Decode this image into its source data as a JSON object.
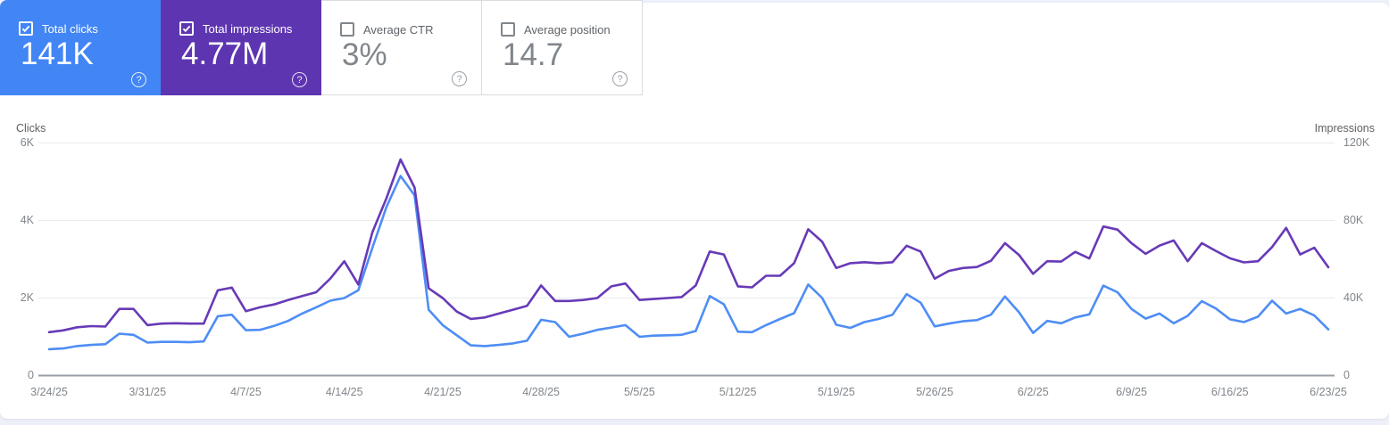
{
  "metric_cards": [
    {
      "label": "Total clicks",
      "value": "141K",
      "checked": true,
      "bg": "#4285f4"
    },
    {
      "label": "Total impressions",
      "value": "4.77M",
      "checked": true,
      "bg": "#5e35b1"
    },
    {
      "label": "Average CTR",
      "value": "3%",
      "checked": false,
      "bg": null
    },
    {
      "label": "Average position",
      "value": "14.7",
      "checked": false,
      "bg": null
    }
  ],
  "help_glyph": "?",
  "chart_data": {
    "type": "line",
    "title": "",
    "grid": true,
    "legend_position": "none",
    "x_tick_every": 7,
    "x": [
      "3/24/25",
      "3/25/25",
      "3/26/25",
      "3/27/25",
      "3/28/25",
      "3/29/25",
      "3/30/25",
      "3/31/25",
      "4/1/25",
      "4/2/25",
      "4/3/25",
      "4/4/25",
      "4/5/25",
      "4/6/25",
      "4/7/25",
      "4/8/25",
      "4/9/25",
      "4/10/25",
      "4/11/25",
      "4/12/25",
      "4/13/25",
      "4/14/25",
      "4/15/25",
      "4/16/25",
      "4/17/25",
      "4/18/25",
      "4/19/25",
      "4/20/25",
      "4/21/25",
      "4/22/25",
      "4/23/25",
      "4/24/25",
      "4/25/25",
      "4/26/25",
      "4/27/25",
      "4/28/25",
      "4/29/25",
      "4/30/25",
      "5/1/25",
      "5/2/25",
      "5/3/25",
      "5/4/25",
      "5/5/25",
      "5/6/25",
      "5/7/25",
      "5/8/25",
      "5/9/25",
      "5/10/25",
      "5/11/25",
      "5/12/25",
      "5/13/25",
      "5/14/25",
      "5/15/25",
      "5/16/25",
      "5/17/25",
      "5/18/25",
      "5/19/25",
      "5/20/25",
      "5/21/25",
      "5/22/25",
      "5/23/25",
      "5/24/25",
      "5/25/25",
      "5/26/25",
      "5/27/25",
      "5/28/25",
      "5/29/25",
      "5/30/25",
      "5/31/25",
      "6/1/25",
      "6/2/25",
      "6/3/25",
      "6/4/25",
      "6/5/25",
      "6/6/25",
      "6/7/25",
      "6/8/25",
      "6/9/25",
      "6/10/25",
      "6/11/25",
      "6/12/25",
      "6/13/25",
      "6/14/25",
      "6/15/25",
      "6/16/25",
      "6/17/25",
      "6/18/25",
      "6/19/25",
      "6/20/25",
      "6/21/25",
      "6/22/25",
      "6/23/25"
    ],
    "left_axis": {
      "title": "Clicks",
      "ticks": [
        "0",
        "2K",
        "4K",
        "6K"
      ],
      "tick_values": [
        0,
        2000,
        4000,
        6000
      ],
      "max": 6000
    },
    "right_axis": {
      "title": "Impressions",
      "ticks": [
        "0",
        "40K",
        "80K",
        "120K"
      ],
      "tick_values": [
        0,
        40000,
        80000,
        120000
      ],
      "max": 120000
    },
    "series": [
      {
        "name": "Total clicks",
        "axis": "left",
        "color": "#4e8df5",
        "values": [
          680,
          700,
          760,
          790,
          810,
          1080,
          1050,
          850,
          870,
          870,
          860,
          880,
          1530,
          1570,
          1170,
          1180,
          1280,
          1410,
          1600,
          1760,
          1930,
          2000,
          2200,
          3300,
          4350,
          5150,
          4650,
          1700,
          1300,
          1040,
          780,
          760,
          790,
          830,
          900,
          1440,
          1380,
          1000,
          1080,
          1180,
          1240,
          1300,
          1000,
          1030,
          1040,
          1050,
          1150,
          2050,
          1840,
          1130,
          1120,
          1300,
          1460,
          1610,
          2350,
          2000,
          1310,
          1230,
          1380,
          1460,
          1570,
          2100,
          1880,
          1270,
          1340,
          1400,
          1430,
          1570,
          2040,
          1630,
          1100,
          1410,
          1350,
          1500,
          1580,
          2320,
          2150,
          1720,
          1470,
          1600,
          1350,
          1540,
          1920,
          1730,
          1450,
          1380,
          1520,
          1930,
          1600,
          1720,
          1550,
          1190
        ]
      },
      {
        "name": "Total impressions",
        "axis": "right",
        "color": "#673ab7",
        "values": [
          22400,
          23300,
          24900,
          25500,
          25300,
          34400,
          34400,
          26000,
          26800,
          27000,
          26800,
          26800,
          44000,
          45400,
          33200,
          35200,
          36700,
          39000,
          41000,
          43000,
          50000,
          59000,
          47000,
          74000,
          91500,
          111500,
          97000,
          45000,
          40000,
          33000,
          29200,
          30000,
          32000,
          34000,
          36000,
          46500,
          38500,
          38500,
          39000,
          40000,
          46000,
          47500,
          39000,
          39500,
          40000,
          40500,
          46500,
          64000,
          62500,
          46000,
          45500,
          51500,
          51500,
          58000,
          75500,
          69000,
          55500,
          58000,
          58500,
          58000,
          58500,
          67000,
          64000,
          50000,
          54000,
          55500,
          56000,
          59200,
          68300,
          62200,
          52500,
          59000,
          58800,
          63800,
          60400,
          76900,
          75300,
          68300,
          62800,
          67100,
          69700,
          59000,
          68300,
          64300,
          60500,
          58400,
          59000,
          66300,
          76200,
          62500,
          66000,
          55900
        ]
      }
    ]
  }
}
